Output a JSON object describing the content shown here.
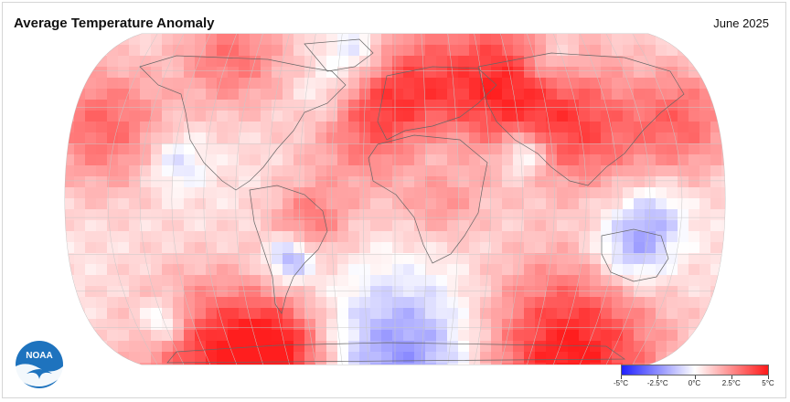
{
  "header": {
    "title": "Average Temperature Anomaly",
    "date": "June 2025"
  },
  "logo": {
    "text": "NOAA"
  },
  "legend": {
    "labels": [
      "-5°C",
      "-2.5°C",
      "0°C",
      "2.5°C",
      "5°C"
    ],
    "min": -5,
    "max": 5,
    "colors": {
      "cold": "#2020ff",
      "neutral": "#ffffff",
      "warm": "#ff1a1a"
    }
  },
  "map": {
    "projection": "robinson",
    "graticule": true
  }
}
